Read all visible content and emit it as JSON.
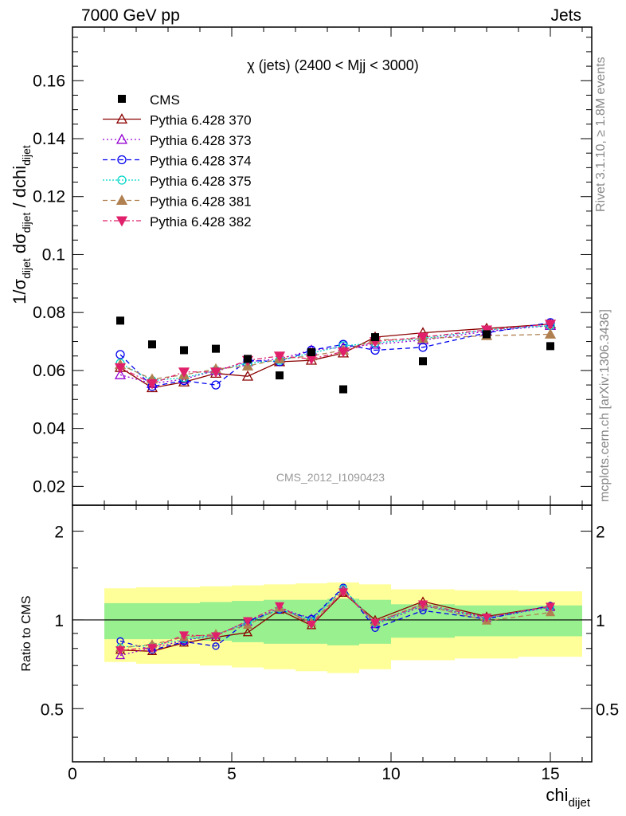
{
  "header": {
    "left": "7000 GeV pp",
    "right": "Jets"
  },
  "side": {
    "rivet": "Rivet 3.1.10, ≥ 1.8M events",
    "mcplots": "mcplots.cern.ch [arXiv:1306.3436]"
  },
  "watermark": "CMS_2012_I1090423",
  "axis": {
    "ylabel_main": "1/σ_dijet dσ_dijet / dchi_dijet",
    "ylabel_ratio": "Ratio to CMS",
    "xlabel": "chi_dijet"
  },
  "chart_data": {
    "type": "scatter",
    "title": "χ (jets) (2400 < Mjj < 3000)",
    "xlim": [
      0,
      16.3
    ],
    "ylim_main": [
      0.0135,
      0.1785
    ],
    "ylim_ratio": [
      0.33,
      2.45
    ],
    "ratio_scale": "log",
    "x_ticks": [
      0,
      5,
      10,
      15
    ],
    "y_ticks_main": [
      0.02,
      0.04,
      0.06,
      0.08,
      0.1,
      0.12,
      0.14,
      0.16
    ],
    "y_ticks_ratio": [
      0.5,
      1,
      2
    ],
    "bins": [
      [
        1,
        2
      ],
      [
        2,
        3
      ],
      [
        3,
        4
      ],
      [
        4,
        5
      ],
      [
        5,
        6
      ],
      [
        6,
        7
      ],
      [
        7,
        8
      ],
      [
        8,
        9
      ],
      [
        9,
        10
      ],
      [
        10,
        12
      ],
      [
        12,
        14
      ],
      [
        14,
        16
      ]
    ],
    "x": [
      1.5,
      2.5,
      3.5,
      4.5,
      5.5,
      6.5,
      7.5,
      8.5,
      9.5,
      11,
      13,
      15
    ],
    "cms": [
      0.0772,
      0.069,
      0.067,
      0.0675,
      0.064,
      0.0583,
      0.0663,
      0.0535,
      0.0715,
      0.0632,
      0.0725,
      0.0684
    ],
    "band_inner": [
      0.14,
      0.14,
      0.14,
      0.15,
      0.16,
      0.17,
      0.17,
      0.18,
      0.17,
      0.13,
      0.12,
      0.12
    ],
    "band_outer": [
      0.28,
      0.29,
      0.29,
      0.3,
      0.31,
      0.32,
      0.33,
      0.34,
      0.32,
      0.27,
      0.26,
      0.25
    ],
    "series": [
      {
        "name": "Pythia 6.428 370",
        "color": "#8b0000",
        "marker": "triangle-up-open",
        "dash": "",
        "values": [
          0.061,
          0.054,
          0.056,
          0.059,
          0.058,
          0.063,
          0.0635,
          0.066,
          0.0715,
          0.073,
          0.0745,
          0.076
        ]
      },
      {
        "name": "Pythia 6.428 373",
        "color": "#9400d3",
        "marker": "triangle-up-open",
        "dash": "2,3",
        "values": [
          0.0585,
          0.0555,
          0.057,
          0.06,
          0.063,
          0.064,
          0.067,
          0.068,
          0.069,
          0.0705,
          0.0735,
          0.0755
        ]
      },
      {
        "name": "Pythia 6.428 374",
        "color": "#0000ee",
        "marker": "circle-open",
        "dash": "6,4",
        "values": [
          0.0655,
          0.0545,
          0.0565,
          0.055,
          0.0635,
          0.063,
          0.067,
          0.069,
          0.067,
          0.068,
          0.073,
          0.0765
        ]
      },
      {
        "name": "Pythia 6.428 375",
        "color": "#00d7c8",
        "marker": "circle-open",
        "dash": "2,2",
        "values": [
          0.0625,
          0.0565,
          0.0575,
          0.06,
          0.0625,
          0.0635,
          0.066,
          0.0685,
          0.0695,
          0.071,
          0.074,
          0.0755
        ]
      },
      {
        "name": "Pythia 6.428 381",
        "color": "#b08050",
        "marker": "triangle-up-filled",
        "dash": "6,4",
        "values": [
          0.062,
          0.057,
          0.0585,
          0.0605,
          0.0615,
          0.064,
          0.065,
          0.067,
          0.0705,
          0.071,
          0.072,
          0.0725
        ]
      },
      {
        "name": "Pythia 6.428 382",
        "color": "#e0206a",
        "marker": "triangle-down-filled",
        "dash": "6,3,2,3",
        "values": [
          0.061,
          0.0555,
          0.0595,
          0.0595,
          0.0635,
          0.065,
          0.064,
          0.0665,
          0.07,
          0.0715,
          0.074,
          0.076
        ]
      }
    ]
  }
}
